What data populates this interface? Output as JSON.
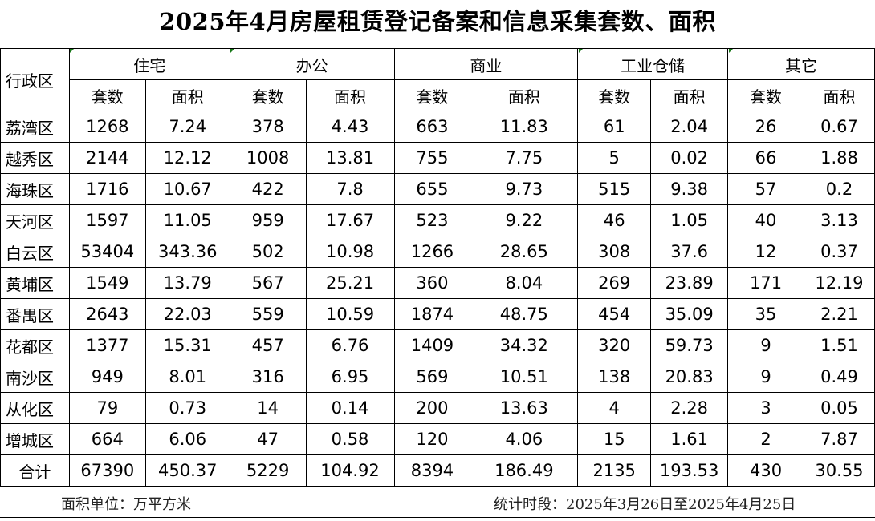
{
  "title": "2025年4月房屋租赁登记备案和信息采集套数、面积",
  "header": {
    "district_label": "行政区",
    "groups": [
      "住宅",
      "办公",
      "商业",
      "工业仓储",
      "其它"
    ],
    "count_label": "套数",
    "area_label": "面积"
  },
  "rows": [
    {
      "district": "荔湾区",
      "values": [
        "1268",
        "7.24",
        "378",
        "4.43",
        "663",
        "11.83",
        "61",
        "2.04",
        "26",
        "0.67"
      ]
    },
    {
      "district": "越秀区",
      "values": [
        "2144",
        "12.12",
        "1008",
        "13.81",
        "755",
        "7.75",
        "5",
        "0.02",
        "66",
        "1.88"
      ]
    },
    {
      "district": "海珠区",
      "values": [
        "1716",
        "10.67",
        "422",
        "7.8",
        "655",
        "9.73",
        "515",
        "9.38",
        "57",
        "0.2"
      ]
    },
    {
      "district": "天河区",
      "values": [
        "1597",
        "11.05",
        "959",
        "17.67",
        "523",
        "9.22",
        "46",
        "1.05",
        "40",
        "3.13"
      ]
    },
    {
      "district": "白云区",
      "values": [
        "53404",
        "343.36",
        "502",
        "10.98",
        "1266",
        "28.65",
        "308",
        "37.6",
        "12",
        "0.37"
      ]
    },
    {
      "district": "黄埔区",
      "values": [
        "1549",
        "13.79",
        "567",
        "25.21",
        "360",
        "8.04",
        "269",
        "23.89",
        "171",
        "12.19"
      ]
    },
    {
      "district": "番禺区",
      "values": [
        "2643",
        "22.03",
        "559",
        "10.59",
        "1874",
        "48.75",
        "454",
        "35.09",
        "35",
        "2.21"
      ]
    },
    {
      "district": "花都区",
      "values": [
        "1377",
        "15.31",
        "457",
        "6.76",
        "1409",
        "34.32",
        "320",
        "59.73",
        "9",
        "1.51"
      ]
    },
    {
      "district": "南沙区",
      "values": [
        "949",
        "8.01",
        "316",
        "6.95",
        "569",
        "10.51",
        "138",
        "20.83",
        "9",
        "0.49"
      ]
    },
    {
      "district": "从化区",
      "values": [
        "79",
        "0.73",
        "14",
        "0.14",
        "200",
        "13.63",
        "4",
        "2.28",
        "3",
        "0.05"
      ]
    },
    {
      "district": "增城区",
      "values": [
        "664",
        "6.06",
        "47",
        "0.58",
        "120",
        "4.06",
        "15",
        "1.61",
        "2",
        "7.87"
      ]
    }
  ],
  "total": {
    "district": "合计",
    "values": [
      "67390",
      "450.37",
      "5229",
      "104.92",
      "8394",
      "186.49",
      "2135",
      "193.53",
      "430",
      "30.55"
    ]
  },
  "footer": {
    "unit": "面积单位：万平方米",
    "period": "统计时段：2025年3月26日至2025年4月25日"
  }
}
